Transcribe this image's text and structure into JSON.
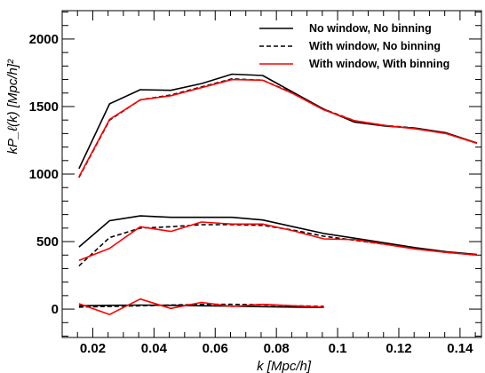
{
  "chart_data": {
    "type": "line",
    "xlabel": "k  [Mpc/h]",
    "ylabel": "kP_ℓ(k)  [Mpc/h]²",
    "xlim": [
      0.01,
      0.147
    ],
    "ylim": [
      -210,
      2210
    ],
    "xticks": [
      0.02,
      0.04,
      0.06,
      0.08,
      0.1,
      0.12,
      0.14
    ],
    "xtick_labels": [
      "0.02",
      "0.04",
      "0.06",
      "0.08",
      "0.1",
      "0.12",
      "0.14"
    ],
    "yticks": [
      0,
      500,
      1000,
      1500,
      2000
    ],
    "ytick_labels": [
      "0",
      "500",
      "1000",
      "1500",
      "2000"
    ],
    "grid": false,
    "legend_position": "top-right",
    "legend": [
      {
        "label": "No window, No binning",
        "color": "#000000",
        "style": "solid"
      },
      {
        "label": "With window, No binning",
        "color": "#000000",
        "style": "dashed"
      },
      {
        "label": "With window, With binning",
        "color": "#ff0000",
        "style": "solid"
      }
    ],
    "series": [
      {
        "legend_index": 0,
        "color": "#000000",
        "style": "solid",
        "x": [
          0.0155,
          0.0255,
          0.0355,
          0.0455,
          0.0555,
          0.0655,
          0.0755,
          0.0855,
          0.0955,
          0.1055,
          0.1155,
          0.1255,
          0.1355,
          0.1455
        ],
        "y": [
          1040,
          1520,
          1625,
          1620,
          1670,
          1740,
          1730,
          1605,
          1480,
          1385,
          1355,
          1340,
          1305,
          1230
        ]
      },
      {
        "legend_index": 1,
        "color": "#000000",
        "style": "dashed",
        "x": [
          0.0155,
          0.0255,
          0.0355,
          0.0455,
          0.0555,
          0.0655,
          0.0755,
          0.0855,
          0.0955,
          0.1055,
          0.1155,
          0.1255,
          0.1355,
          0.1455
        ],
        "y": [
          975,
          1400,
          1550,
          1585,
          1645,
          1705,
          1695,
          1600,
          1480,
          1395,
          1360,
          1340,
          1300,
          1230
        ]
      },
      {
        "legend_index": 2,
        "color": "#ff0000",
        "style": "solid",
        "x": [
          0.0155,
          0.0255,
          0.0355,
          0.0455,
          0.0555,
          0.0655,
          0.0755,
          0.0855,
          0.0955,
          0.1055,
          0.1155,
          0.1255,
          0.1355,
          0.1455
        ],
        "y": [
          980,
          1405,
          1550,
          1580,
          1640,
          1700,
          1695,
          1595,
          1475,
          1395,
          1360,
          1335,
          1300,
          1228
        ]
      },
      {
        "legend_index": 0,
        "color": "#000000",
        "style": "solid",
        "x": [
          0.0155,
          0.0255,
          0.0355,
          0.0455,
          0.0555,
          0.0655,
          0.0755,
          0.0855,
          0.0955,
          0.1055,
          0.1155,
          0.1255,
          0.1355,
          0.1455
        ],
        "y": [
          460,
          655,
          690,
          680,
          680,
          680,
          660,
          610,
          560,
          525,
          490,
          455,
          425,
          405
        ]
      },
      {
        "legend_index": 1,
        "color": "#000000",
        "style": "dashed",
        "x": [
          0.0155,
          0.0255,
          0.0355,
          0.0455,
          0.0555,
          0.0655,
          0.0755,
          0.0855,
          0.0955,
          0.1055,
          0.1155,
          0.1255,
          0.1355,
          0.1455
        ],
        "y": [
          320,
          530,
          600,
          610,
          625,
          625,
          620,
          585,
          540,
          510,
          480,
          450,
          420,
          400
        ]
      },
      {
        "legend_index": 2,
        "color": "#ff0000",
        "style": "solid",
        "x": [
          0.0155,
          0.0255,
          0.0355,
          0.0455,
          0.0555,
          0.0655,
          0.0755,
          0.0855,
          0.0955,
          0.1055,
          0.1155,
          0.1255,
          0.1355,
          0.1455
        ],
        "y": [
          360,
          450,
          610,
          575,
          645,
          630,
          630,
          580,
          520,
          515,
          480,
          445,
          420,
          400
        ]
      },
      {
        "legend_index": 0,
        "color": "#000000",
        "style": "solid",
        "x": [
          0.0155,
          0.0255,
          0.0355,
          0.0455,
          0.0555,
          0.0655,
          0.0755,
          0.0855,
          0.0955
        ],
        "y": [
          25,
          28,
          30,
          28,
          25,
          22,
          18,
          15,
          12
        ]
      },
      {
        "legend_index": 1,
        "color": "#000000",
        "style": "dashed",
        "x": [
          0.0155,
          0.0255,
          0.0355,
          0.0455,
          0.0555,
          0.0655,
          0.0755,
          0.0855,
          0.0955
        ],
        "y": [
          15,
          20,
          25,
          30,
          35,
          35,
          32,
          25,
          20
        ]
      },
      {
        "legend_index": 2,
        "color": "#ff0000",
        "style": "solid",
        "x": [
          0.0155,
          0.0255,
          0.0355,
          0.0455,
          0.0555,
          0.0655,
          0.0755,
          0.0855,
          0.0955
        ],
        "y": [
          40,
          -40,
          75,
          5,
          50,
          20,
          35,
          25,
          15
        ]
      }
    ]
  }
}
